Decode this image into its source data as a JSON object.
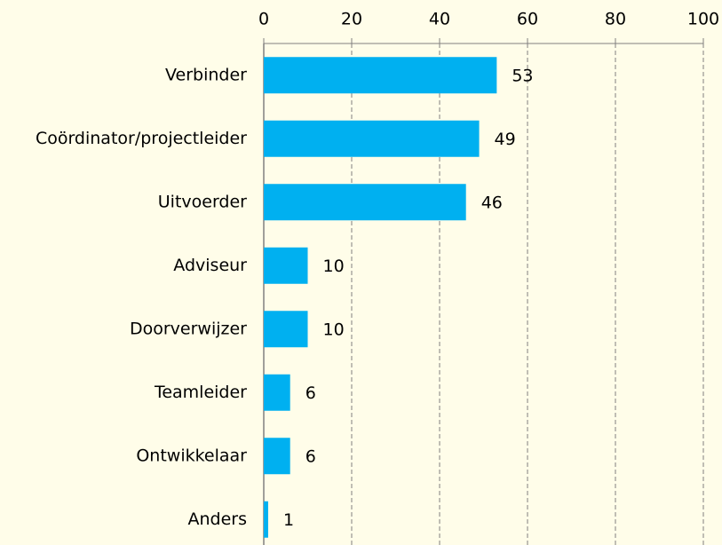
{
  "chart_data": {
    "type": "bar",
    "orientation": "horizontal",
    "categories": [
      "Verbinder",
      "Coördinator/projectleider",
      "Uitvoerder",
      "Adviseur",
      "Doorverwijzer",
      "Teamleider",
      "Ontwikkelaar",
      "Anders"
    ],
    "values": [
      53,
      49,
      46,
      10,
      10,
      6,
      6,
      1
    ],
    "color": "#00b0f0",
    "xlim": [
      0,
      100
    ],
    "xticks": [
      0,
      20,
      40,
      60,
      80,
      100
    ],
    "grid": true
  }
}
